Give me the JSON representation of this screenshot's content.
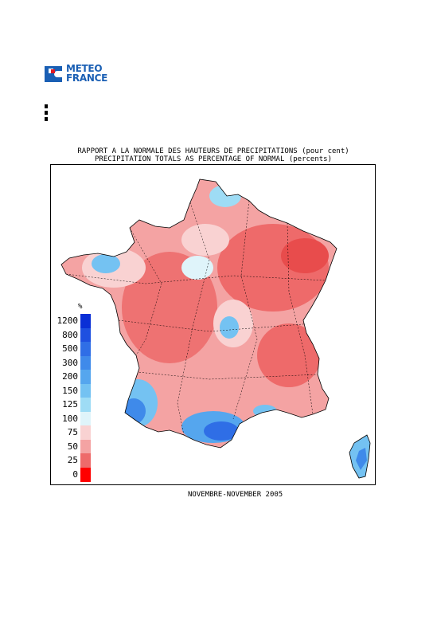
{
  "logo": {
    "line1": "METEO",
    "line2": "FRANCE",
    "brand_color": "#1a5fb4"
  },
  "title": {
    "line1": "RAPPORT A LA NORMALE DES HAUTEURS DE PRECIPITATIONS (pour cent)",
    "line2": "PRECIPITATION TOTALS AS PERCENTAGE OF NORMAL (percents)"
  },
  "legend": {
    "unit": "%",
    "classes": [
      {
        "label": "1200",
        "color": "#0a2fd6"
      },
      {
        "label": "800",
        "color": "#1e50e0"
      },
      {
        "label": "500",
        "color": "#2f6ee6"
      },
      {
        "label": "300",
        "color": "#3f8aea"
      },
      {
        "label": "200",
        "color": "#55a6ee"
      },
      {
        "label": "150",
        "color": "#74c2f2"
      },
      {
        "label": "125",
        "color": "#9edcf5"
      },
      {
        "label": "100",
        "color": "#dff4fa"
      },
      {
        "label": "75",
        "color": "#f9d2d2"
      },
      {
        "label": "50",
        "color": "#f4a3a3"
      },
      {
        "label": "25",
        "color": "#ee6a6a"
      },
      {
        "label": "0",
        "color": "#ff0000"
      }
    ]
  },
  "period": "NOVEMBRE-NOVEMBER 2005"
}
